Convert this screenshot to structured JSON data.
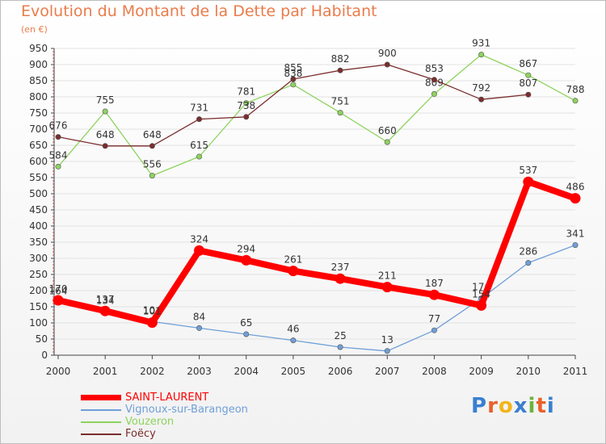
{
  "title": "Evolution du Montant de la Dette par Habitant",
  "unit": "(en €)",
  "logo": {
    "text": "Proxiti",
    "colors": [
      "#3a7fd0",
      "#e8612c",
      "#f2b51a",
      "#3a7fd0",
      "#6cb33f",
      "#e8612c",
      "#3a7fd0"
    ]
  },
  "chart_data": {
    "type": "line",
    "title": "Evolution du Montant de la Dette par Habitant",
    "ylabel": "(en €)",
    "xlabel": "",
    "x": [
      "2000",
      "2001",
      "2002",
      "2003",
      "2004",
      "2005",
      "2006",
      "2007",
      "2008",
      "2009",
      "2010",
      "2011"
    ],
    "ylim": [
      0,
      950
    ],
    "yticks": [
      0,
      50,
      100,
      150,
      200,
      250,
      300,
      350,
      400,
      450,
      500,
      550,
      600,
      650,
      700,
      750,
      800,
      850,
      900,
      950
    ],
    "grid": true,
    "legend_position": "bottom-left",
    "series": [
      {
        "name": "SAINT-LAURENT",
        "color": "#ff0000",
        "values": [
          170,
          137,
          101,
          324,
          294,
          261,
          237,
          211,
          187,
          154,
          537,
          486
        ],
        "labels": [
          "170",
          "137",
          "101",
          "324",
          "294",
          "261",
          "237",
          "211",
          "187",
          "154",
          "537",
          "486"
        ]
      },
      {
        "name": "Vignoux-sur-Barangeon",
        "color": "#6f9fd8",
        "values": [
          164,
          134,
          104,
          84,
          65,
          46,
          25,
          13,
          77,
          176,
          286,
          341
        ],
        "labels": [
          "164",
          "134",
          "104",
          "84",
          "65",
          "46",
          "25",
          "13",
          "77",
          "176",
          "286",
          "341"
        ]
      },
      {
        "name": "Vouzeron",
        "color": "#8ed35e",
        "values": [
          584,
          755,
          556,
          615,
          781,
          838,
          751,
          660,
          809,
          931,
          867,
          788
        ],
        "labels": [
          "584",
          "755",
          "556",
          "615",
          "781",
          "838",
          "751",
          "660",
          "809",
          "931",
          "867",
          "788"
        ]
      },
      {
        "name": "Foëcy",
        "color": "#7b2d2d",
        "values": [
          676,
          648,
          648,
          731,
          738,
          855,
          882,
          900,
          853,
          792,
          807,
          null
        ],
        "labels": [
          "676",
          "648",
          "648",
          "731",
          "738",
          "855",
          "882",
          "900",
          "853",
          "792",
          "807",
          ""
        ]
      }
    ]
  }
}
